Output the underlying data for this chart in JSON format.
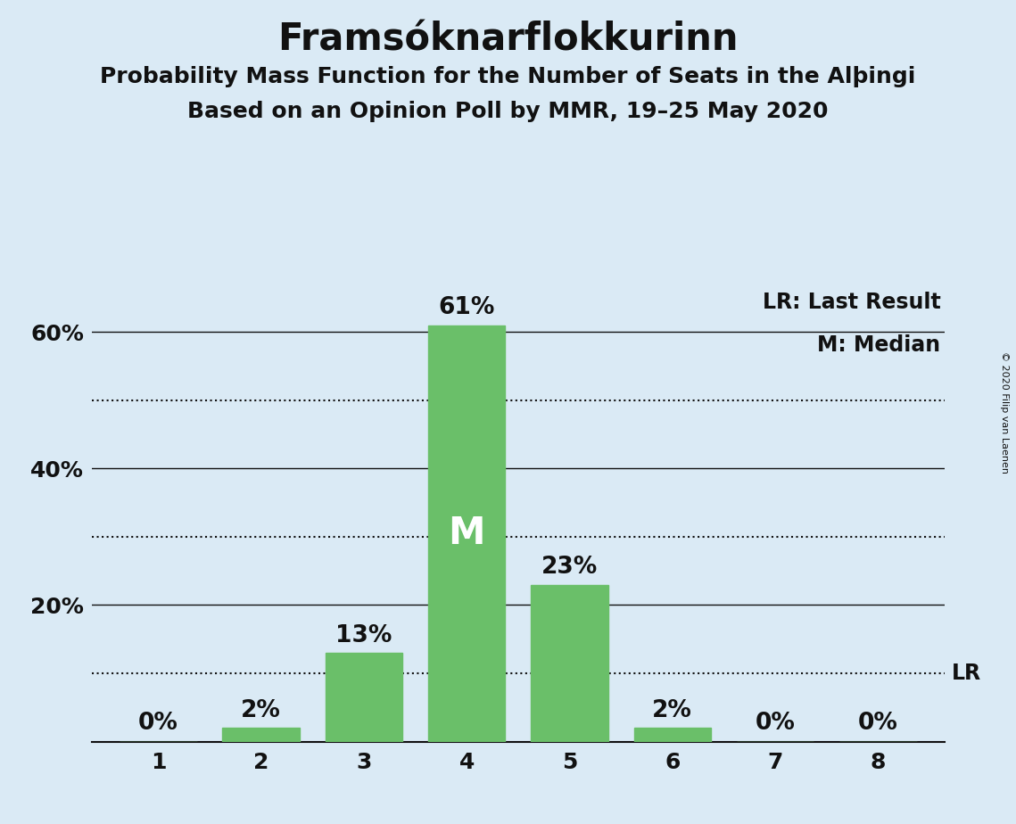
{
  "title": "Framsóknarflokkurinn",
  "subtitle1": "Probability Mass Function for the Number of Seats in the Alþingi",
  "subtitle2": "Based on an Opinion Poll by MMR, 19–25 May 2020",
  "copyright": "© 2020 Filip van Laenen",
  "seats": [
    1,
    2,
    3,
    4,
    5,
    6,
    7,
    8
  ],
  "probabilities": [
    0,
    2,
    13,
    61,
    23,
    2,
    0,
    0
  ],
  "bar_color": "#6abf69",
  "median_seat": 4,
  "lr_value": 10,
  "background_color": "#daeaf5",
  "bar_labels": [
    "0%",
    "2%",
    "13%",
    "61%",
    "23%",
    "2%",
    "0%",
    "0%"
  ],
  "yticks": [
    0,
    20,
    40,
    60
  ],
  "ytick_labels": [
    "",
    "20%",
    "40%",
    "60%"
  ],
  "dotted_lines": [
    10,
    30,
    50
  ],
  "solid_lines": [
    20,
    40,
    60
  ],
  "ylim": [
    0,
    70
  ],
  "xlim_left": 0.35,
  "xlim_right": 8.65,
  "legend_lr": "LR: Last Result",
  "legend_m": "M: Median",
  "title_fontsize": 30,
  "subtitle_fontsize": 18,
  "bar_label_fontsize": 19,
  "median_label_fontsize": 30,
  "tick_fontsize": 18,
  "legend_fontsize": 17,
  "copyright_fontsize": 8
}
